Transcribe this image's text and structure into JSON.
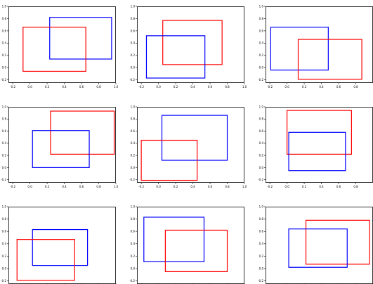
{
  "figure": {
    "background": "#ffffff",
    "axis_color": "#000000"
  },
  "chart_data": [
    {
      "type": "rectangle-overlay",
      "xlim": [
        -0.25,
        1.0
      ],
      "ylim": [
        -0.25,
        1.0
      ],
      "xticks": [
        "-0.2",
        "0.0",
        "0.2",
        "0.4",
        "0.6",
        "0.8",
        "1.0"
      ],
      "yticks": [
        "-0.2",
        "0.0",
        "0.2",
        "0.4",
        "0.6",
        "0.8",
        "1.0"
      ],
      "boxes": [
        {
          "color": "#0000ff",
          "x0": 0.23,
          "x1": 0.95,
          "y0": 0.14,
          "y1": 0.82
        },
        {
          "color": "#ff0000",
          "x0": -0.08,
          "x1": 0.65,
          "y0": -0.06,
          "y1": 0.66
        }
      ]
    },
    {
      "type": "rectangle-overlay",
      "xlim": [
        -0.25,
        1.0
      ],
      "ylim": [
        -0.25,
        1.0
      ],
      "xticks": [
        "-0.2",
        "0.0",
        "0.2",
        "0.4",
        "0.6",
        "0.8",
        "1.0"
      ],
      "yticks": [
        "-0.2",
        "0.0",
        "0.2",
        "0.4",
        "0.6",
        "0.8",
        "1.0"
      ],
      "boxes": [
        {
          "color": "#ff0000",
          "x0": 0.05,
          "x1": 0.74,
          "y0": 0.05,
          "y1": 0.77
        },
        {
          "color": "#0000ff",
          "x0": -0.14,
          "x1": 0.54,
          "y0": -0.17,
          "y1": 0.52
        }
      ]
    },
    {
      "type": "rectangle-overlay",
      "xlim": [
        -0.25,
        1.0
      ],
      "ylim": [
        -0.25,
        1.0
      ],
      "xticks": [
        "-0.2",
        "0.0",
        "0.2",
        "0.4",
        "0.6",
        "0.8"
      ],
      "yticks": [
        "-0.2",
        "0.0",
        "0.2",
        "0.4",
        "0.6",
        "0.8",
        "1.0"
      ],
      "boxes": [
        {
          "color": "#0000ff",
          "x0": -0.19,
          "x1": 0.48,
          "y0": -0.04,
          "y1": 0.66
        },
        {
          "color": "#ff0000",
          "x0": 0.13,
          "x1": 0.87,
          "y0": -0.19,
          "y1": 0.46
        }
      ]
    },
    {
      "type": "rectangle-overlay",
      "xlim": [
        -0.25,
        1.0
      ],
      "ylim": [
        -0.25,
        1.0
      ],
      "xticks": [
        "-0.2",
        "0.0",
        "0.2",
        "0.4",
        "0.6",
        "0.8",
        "1.0"
      ],
      "yticks": [
        "-0.2",
        "0.0",
        "0.2",
        "0.4",
        "0.6",
        "0.8",
        "1.0"
      ],
      "boxes": [
        {
          "color": "#ff0000",
          "x0": 0.24,
          "x1": 0.98,
          "y0": 0.22,
          "y1": 0.93
        },
        {
          "color": "#0000ff",
          "x0": 0.03,
          "x1": 0.69,
          "y0": 0.0,
          "y1": 0.61
        }
      ]
    },
    {
      "type": "rectangle-overlay",
      "xlim": [
        -0.25,
        1.0
      ],
      "ylim": [
        -0.25,
        1.0
      ],
      "xticks": [
        "-0.2",
        "0.0",
        "0.2",
        "0.4",
        "0.6",
        "0.8",
        "1.0"
      ],
      "yticks": [
        "-0.2",
        "0.0",
        "0.2",
        "0.4",
        "0.6",
        "0.8",
        "1.0"
      ],
      "boxes": [
        {
          "color": "#0000ff",
          "x0": 0.04,
          "x1": 0.8,
          "y0": 0.12,
          "y1": 0.86
        },
        {
          "color": "#ff0000",
          "x0": -0.2,
          "x1": 0.45,
          "y0": -0.21,
          "y1": 0.45
        }
      ]
    },
    {
      "type": "rectangle-overlay",
      "xlim": [
        -0.25,
        1.0
      ],
      "ylim": [
        -0.25,
        1.0
      ],
      "xticks": [
        "-0.2",
        "0.0",
        "0.2",
        "0.4",
        "0.6",
        "0.8"
      ],
      "yticks": [
        "-0.2",
        "0.0",
        "0.2",
        "0.4",
        "0.6",
        "0.8",
        "1.0"
      ],
      "boxes": [
        {
          "color": "#ff0000",
          "x0": 0.0,
          "x1": 0.75,
          "y0": 0.22,
          "y1": 0.94
        },
        {
          "color": "#0000ff",
          "x0": 0.02,
          "x1": 0.68,
          "y0": -0.05,
          "y1": 0.58
        }
      ]
    },
    {
      "type": "rectangle-overlay",
      "xlim": [
        -0.25,
        1.0
      ],
      "ylim": [
        -0.25,
        1.0
      ],
      "xticks": [],
      "yticks": [
        "-0.2",
        "0.0",
        "0.2",
        "0.4",
        "0.6",
        "0.8",
        "1.0"
      ],
      "boxes": [
        {
          "color": "#0000ff",
          "x0": 0.03,
          "x1": 0.67,
          "y0": 0.05,
          "y1": 0.63
        },
        {
          "color": "#ff0000",
          "x0": -0.15,
          "x1": 0.52,
          "y0": -0.19,
          "y1": 0.47
        }
      ]
    },
    {
      "type": "rectangle-overlay",
      "xlim": [
        -0.25,
        1.0
      ],
      "ylim": [
        -0.25,
        1.0
      ],
      "xticks": [],
      "yticks": [
        "-0.2",
        "0.0",
        "0.2",
        "0.4",
        "0.6",
        "0.8",
        "1.0"
      ],
      "boxes": [
        {
          "color": "#0000ff",
          "x0": -0.17,
          "x1": 0.53,
          "y0": 0.11,
          "y1": 0.83
        },
        {
          "color": "#ff0000",
          "x0": 0.08,
          "x1": 0.8,
          "y0": -0.05,
          "y1": 0.62
        }
      ]
    },
    {
      "type": "rectangle-overlay",
      "xlim": [
        -0.25,
        1.0
      ],
      "ylim": [
        -0.25,
        1.0
      ],
      "xticks": [],
      "yticks": [
        "-0.2",
        "0.0",
        "0.2",
        "0.4",
        "0.6",
        "0.8",
        "1.0"
      ],
      "boxes": [
        {
          "color": "#ff0000",
          "x0": 0.22,
          "x1": 0.96,
          "y0": 0.07,
          "y1": 0.78
        },
        {
          "color": "#0000ff",
          "x0": 0.02,
          "x1": 0.7,
          "y0": 0.02,
          "y1": 0.64
        }
      ]
    }
  ]
}
